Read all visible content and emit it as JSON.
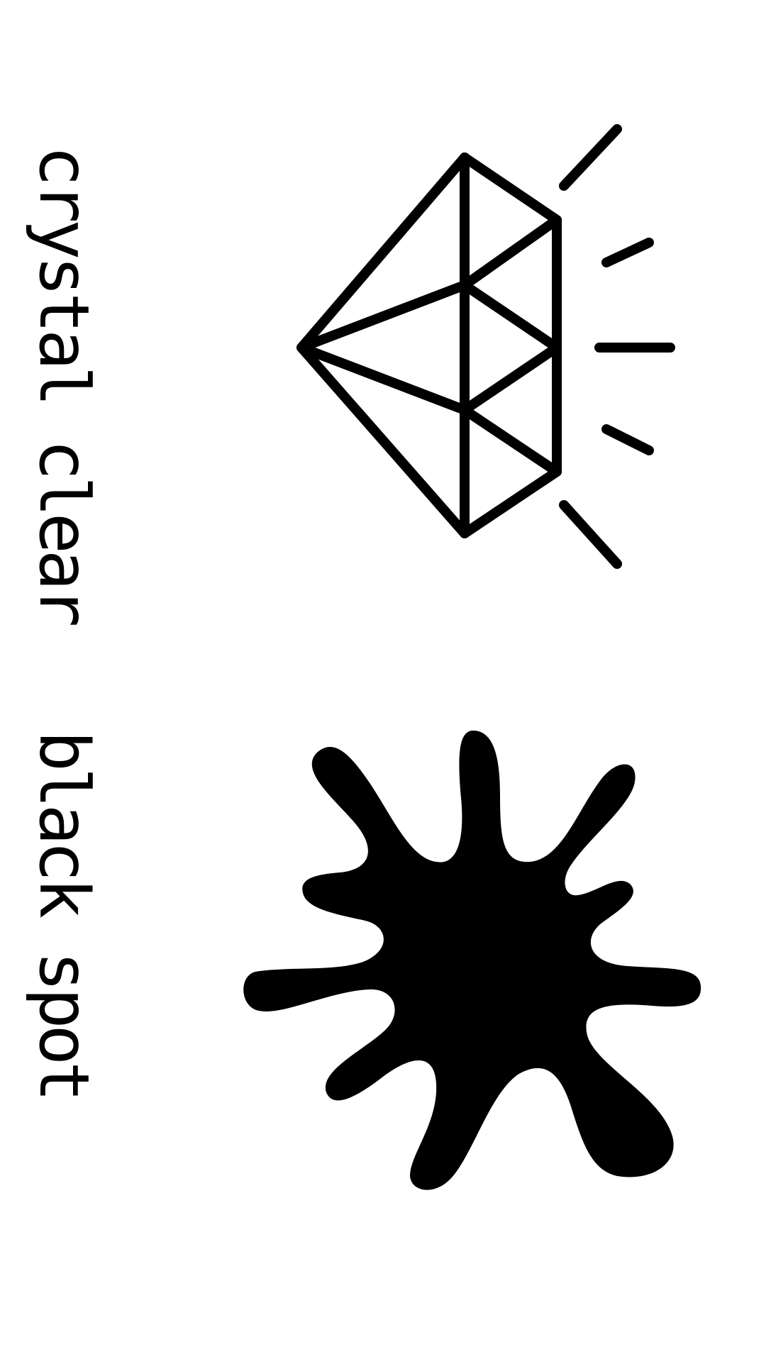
{
  "labels": {
    "top": "crystal clear",
    "bottom": "black spot"
  },
  "illustrations": {
    "top": "crystal-diamond-icon",
    "bottom": "ink-splat-icon"
  },
  "colors": {
    "ink": "#000000",
    "background": "#ffffff"
  }
}
